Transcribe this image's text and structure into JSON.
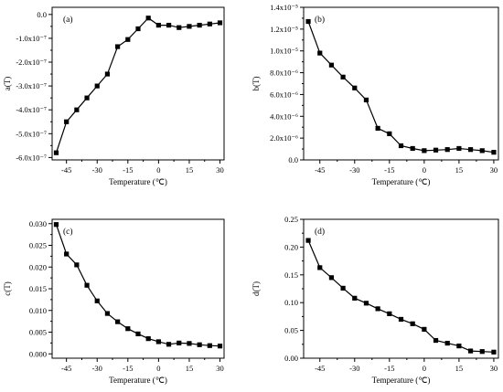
{
  "chart_data": [
    {
      "type": "line",
      "panel_label": "(a)",
      "xlabel": "Temperature (℃)",
      "ylabel": "a(T)",
      "xlim": [
        -52,
        32
      ],
      "ylim": [
        -6.1e-07,
        3e-08
      ],
      "x_ticks": [
        -45,
        -30,
        -15,
        0,
        15,
        30
      ],
      "x_tick_labels": [
        "-45",
        "-30",
        "-15",
        "0",
        "15",
        "30"
      ],
      "y_ticks": [
        0,
        -1e-07,
        -2e-07,
        -3e-07,
        -4e-07,
        -5e-07,
        -6e-07
      ],
      "y_tick_labels": [
        "0.0",
        "-1.0x10⁻⁷",
        "-2.0x10⁻⁷",
        "-3.0x10⁻⁷",
        "-4.0x10⁻⁷",
        "-5.0x10⁻⁷",
        "-6.0x10⁻⁷"
      ],
      "x": [
        -50,
        -45,
        -40,
        -35,
        -30,
        -25,
        -20,
        -15,
        -10,
        -5,
        0,
        5,
        10,
        15,
        20,
        25,
        30
      ],
      "y": [
        -5.8e-07,
        -4.5e-07,
        -4e-07,
        -3.5e-07,
        -3e-07,
        -2.5e-07,
        -1.35e-07,
        -1.05e-07,
        -6e-08,
        -1.5e-08,
        -4.5e-08,
        -4.5e-08,
        -5.5e-08,
        -5e-08,
        -4.5e-08,
        -4e-08,
        -3.5e-08
      ]
    },
    {
      "type": "line",
      "panel_label": "(b)",
      "xlabel": "Temperature (℃)",
      "ylabel": "b(T)",
      "xlim": [
        -52,
        32
      ],
      "ylim": [
        0,
        1.4e-05
      ],
      "x_ticks": [
        -45,
        -30,
        -15,
        0,
        15,
        30
      ],
      "x_tick_labels": [
        "-45",
        "-30",
        "-15",
        "0",
        "15",
        "30"
      ],
      "y_ticks": [
        0,
        2e-06,
        4e-06,
        6e-06,
        8e-06,
        1e-05,
        1.2e-05,
        1.4e-05
      ],
      "y_tick_labels": [
        "0.0",
        "2.0x10⁻⁶",
        "4.0x10⁻⁶",
        "6.0x10⁻⁶",
        "8.0x10⁻⁶",
        "1.0x10⁻⁵",
        "1.2x10⁻⁵",
        "1.4x10⁻⁵"
      ],
      "x": [
        -50,
        -45,
        -40,
        -35,
        -30,
        -25,
        -20,
        -15,
        -10,
        -5,
        0,
        5,
        10,
        15,
        20,
        25,
        30
      ],
      "y": [
        1.27e-05,
        9.8e-06,
        8.7e-06,
        7.6e-06,
        6.6e-06,
        5.5e-06,
        2.9e-06,
        2.4e-06,
        1.3e-06,
        1.05e-06,
        8.5e-07,
        9e-07,
        9.5e-07,
        1.05e-06,
        9.5e-07,
        8.5e-07,
        7e-07
      ]
    },
    {
      "type": "line",
      "panel_label": "(c)",
      "xlabel": "Temperature (℃)",
      "ylabel": "c(T)",
      "xlim": [
        -52,
        32
      ],
      "ylim": [
        -0.001,
        0.031
      ],
      "x_ticks": [
        -45,
        -30,
        -15,
        0,
        15,
        30
      ],
      "x_tick_labels": [
        "-45",
        "-30",
        "-15",
        "0",
        "15",
        "30"
      ],
      "y_ticks": [
        0,
        0.005,
        0.01,
        0.015,
        0.02,
        0.025,
        0.03
      ],
      "y_tick_labels": [
        "0.000",
        "0.005",
        "0.010",
        "0.015",
        "0.020",
        "0.025",
        "0.030"
      ],
      "x": [
        -50,
        -45,
        -40,
        -35,
        -30,
        -25,
        -20,
        -15,
        -10,
        -5,
        0,
        5,
        10,
        15,
        20,
        25,
        30
      ],
      "y": [
        0.0298,
        0.023,
        0.0205,
        0.0158,
        0.0122,
        0.0093,
        0.0074,
        0.0058,
        0.0046,
        0.0035,
        0.0028,
        0.0022,
        0.0025,
        0.0024,
        0.0021,
        0.0019,
        0.0018
      ]
    },
    {
      "type": "line",
      "panel_label": "(d)",
      "xlabel": "Temperature (℃)",
      "ylabel": "d(T)",
      "xlim": [
        -52,
        32
      ],
      "ylim": [
        0,
        0.25
      ],
      "x_ticks": [
        -45,
        -30,
        -15,
        0,
        15,
        30
      ],
      "x_tick_labels": [
        "-45",
        "-30",
        "-15",
        "0",
        "15",
        "30"
      ],
      "y_ticks": [
        0,
        0.05,
        0.1,
        0.15,
        0.2,
        0.25
      ],
      "y_tick_labels": [
        "0.00",
        "0.05",
        "0.10",
        "0.15",
        "0.20",
        "0.25"
      ],
      "x": [
        -50,
        -45,
        -40,
        -35,
        -30,
        -25,
        -20,
        -15,
        -10,
        -5,
        0,
        5,
        10,
        15,
        20,
        25,
        30
      ],
      "y": [
        0.212,
        0.163,
        0.145,
        0.126,
        0.108,
        0.099,
        0.089,
        0.08,
        0.07,
        0.062,
        0.052,
        0.032,
        0.027,
        0.022,
        0.013,
        0.012,
        0.011
      ]
    }
  ]
}
